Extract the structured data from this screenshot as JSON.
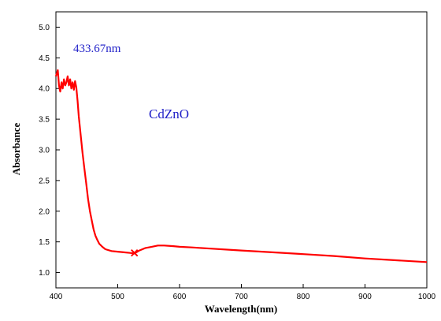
{
  "chart_data": {
    "type": "line",
    "xlabel": "Wavelength(nm)",
    "ylabel": "Absorbance",
    "xlim": [
      400,
      1000
    ],
    "ylim": [
      0.75,
      5.25
    ],
    "x_ticks": [
      400,
      500,
      600,
      700,
      800,
      900,
      1000
    ],
    "y_ticks": [
      1.0,
      1.5,
      2.0,
      2.5,
      3.0,
      3.5,
      4.0,
      4.5,
      5.0
    ],
    "x_tick_labels": [
      "400",
      "500",
      "600",
      "700",
      "800",
      "900",
      "1000"
    ],
    "y_tick_labels": [
      "1.0",
      "1.5",
      "2.0",
      "2.5",
      "3.0",
      "3.5",
      "4.0",
      "4.5",
      "5.0"
    ],
    "grid": false,
    "line_color": "#ff0000",
    "annotation_color": "#1f1fc8",
    "annotations": {
      "peak_label": "433.67nm",
      "sample_label": "CdZnO"
    },
    "marker": {
      "symbol": "x",
      "x": 527,
      "y": 1.32
    },
    "series": [
      {
        "x": [
          400,
          403,
          405,
          407,
          409,
          411,
          413,
          415,
          417,
          419,
          421,
          423,
          425,
          427,
          429,
          431,
          433,
          435,
          437,
          440,
          443,
          446,
          449,
          452,
          455,
          458,
          461,
          464,
          467,
          470,
          475,
          480,
          490,
          500,
          510,
          520,
          527,
          535,
          545,
          555,
          565,
          575,
          590,
          600,
          620,
          650,
          700,
          750,
          800,
          850,
          900,
          950,
          1000
        ],
        "y": [
          4.2,
          4.3,
          4.05,
          3.95,
          4.1,
          4.0,
          4.15,
          4.05,
          4.1,
          4.2,
          4.05,
          4.15,
          4.0,
          4.1,
          3.98,
          4.12,
          4.02,
          3.8,
          3.55,
          3.25,
          2.95,
          2.7,
          2.45,
          2.2,
          2.0,
          1.85,
          1.7,
          1.6,
          1.53,
          1.47,
          1.42,
          1.38,
          1.35,
          1.34,
          1.33,
          1.32,
          1.31,
          1.36,
          1.4,
          1.42,
          1.44,
          1.44,
          1.43,
          1.42,
          1.41,
          1.39,
          1.36,
          1.33,
          1.3,
          1.27,
          1.23,
          1.2,
          1.17
        ]
      }
    ]
  }
}
